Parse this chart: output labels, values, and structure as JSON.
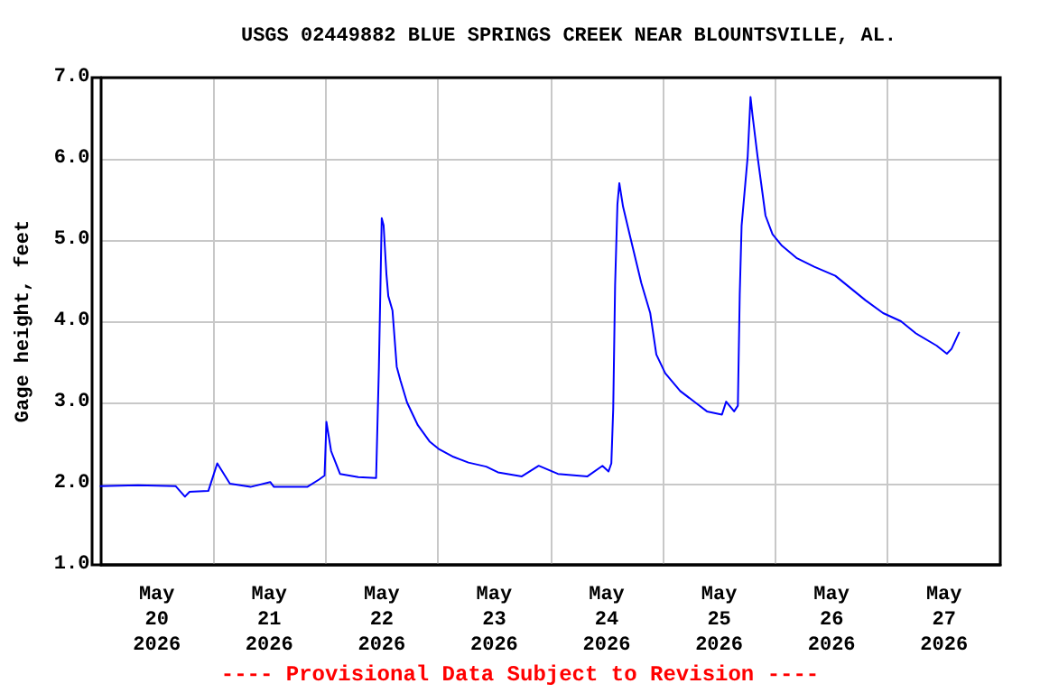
{
  "chart_data": {
    "type": "line",
    "title": "USGS 02449882 BLUE SPRINGS CREEK NEAR BLOUNTSVILLE, AL.",
    "ylabel": "Gage height, feet",
    "annotations": [
      "---- Provisional Data Subject to Revision ----"
    ],
    "x": [
      "2026-05-20T00:00",
      "2026-05-20T08:00",
      "2026-05-20T16:00",
      "2026-05-20T18:00",
      "2026-05-20T19:00",
      "2026-05-20T23:00",
      "2026-05-21T00:54",
      "2026-05-21T03:36",
      "2026-05-21T08:00",
      "2026-05-21T12:12",
      "2026-05-21T13:00",
      "2026-05-21T20:06",
      "2026-05-21T22:36",
      "2026-05-21T23:48",
      "2026-05-22T00:12",
      "2026-05-22T01:12",
      "2026-05-22T03:06",
      "2026-05-22T07:00",
      "2026-05-22T10:48",
      "2026-05-22T11:24",
      "2026-05-22T12:00",
      "2026-05-22T12:24",
      "2026-05-22T13:00",
      "2026-05-22T13:24",
      "2026-05-22T14:18",
      "2026-05-22T15:12",
      "2026-05-22T16:00",
      "2026-05-22T17:24",
      "2026-05-22T19:42",
      "2026-05-22T22:12",
      "2026-05-23T00:06",
      "2026-05-23T03:18",
      "2026-05-23T06:30",
      "2026-05-23T10:18",
      "2026-05-23T12:48",
      "2026-05-23T17:54",
      "2026-05-23T21:30",
      "2026-05-24T01:36",
      "2026-05-24T07:54",
      "2026-05-24T11:06",
      "2026-05-24T12:24",
      "2026-05-24T13:00",
      "2026-05-24T13:24",
      "2026-05-24T13:48",
      "2026-05-24T14:18",
      "2026-05-24T14:42",
      "2026-05-24T15:30",
      "2026-05-24T16:54",
      "2026-05-24T19:24",
      "2026-05-24T21:18",
      "2026-05-24T22:36",
      "2026-05-25T00:30",
      "2026-05-25T03:42",
      "2026-05-25T06:54",
      "2026-05-25T09:24",
      "2026-05-25T12:36",
      "2026-05-25T13:30",
      "2026-05-25T15:12",
      "2026-05-25T16:00",
      "2026-05-25T16:24",
      "2026-05-25T16:48",
      "2026-05-25T18:06",
      "2026-05-25T18:42",
      "2026-05-25T19:06",
      "2026-05-25T20:12",
      "2026-05-25T21:54",
      "2026-05-25T23:24",
      "2026-05-26T01:24",
      "2026-05-26T04:30",
      "2026-05-26T08:18",
      "2026-05-26T12:48",
      "2026-05-26T16:00",
      "2026-05-26T19:12",
      "2026-05-26T23:00",
      "2026-05-27T02:48",
      "2026-05-27T06:00",
      "2026-05-27T10:24",
      "2026-05-27T12:36",
      "2026-05-27T13:36",
      "2026-05-27T15:12"
    ],
    "series": [
      {
        "color": "#0000ff",
        "values": [
          1.97,
          1.98,
          1.97,
          1.84,
          1.9,
          1.91,
          2.25,
          2.0,
          1.96,
          2.02,
          1.96,
          1.96,
          2.05,
          2.1,
          2.76,
          2.4,
          2.12,
          2.08,
          2.07,
          3.44,
          5.27,
          5.18,
          4.58,
          4.31,
          4.13,
          3.44,
          3.27,
          3.0,
          2.72,
          2.52,
          2.43,
          2.33,
          2.26,
          2.21,
          2.14,
          2.09,
          2.22,
          2.12,
          2.09,
          2.22,
          2.15,
          2.25,
          2.92,
          4.44,
          5.44,
          5.7,
          5.41,
          5.07,
          4.47,
          4.1,
          3.59,
          3.36,
          3.14,
          3.0,
          2.89,
          2.85,
          3.01,
          2.89,
          2.96,
          4.33,
          5.18,
          6.03,
          6.76,
          6.55,
          6.03,
          5.3,
          5.07,
          4.93,
          4.78,
          4.67,
          4.56,
          4.41,
          4.26,
          4.1,
          4.0,
          3.85,
          3.7,
          3.6,
          3.66,
          3.86
        ]
      }
    ],
    "xlim": [
      "2026-05-20T00:00",
      "2026-05-28T00:00"
    ],
    "xticks": [
      {
        "value": "2026-05-20T12:00",
        "label": "May\n20\n2026"
      },
      {
        "value": "2026-05-21T12:00",
        "label": "May\n21\n2026"
      },
      {
        "value": "2026-05-22T12:00",
        "label": "May\n22\n2026"
      },
      {
        "value": "2026-05-23T12:00",
        "label": "May\n23\n2026"
      },
      {
        "value": "2026-05-24T12:00",
        "label": "May\n24\n2026"
      },
      {
        "value": "2026-05-25T12:00",
        "label": "May\n25\n2026"
      },
      {
        "value": "2026-05-26T12:00",
        "label": "May\n26\n2026"
      },
      {
        "value": "2026-05-27T12:00",
        "label": "May\n27\n2026"
      },
      {
        "value": "2026-05-21T00:00",
        "label": null
      },
      {
        "value": "2026-05-22T00:00",
        "label": null
      },
      {
        "value": "2026-05-23T00:00",
        "label": null
      },
      {
        "value": "2026-05-24T00:00",
        "label": null
      },
      {
        "value": "2026-05-25T00:00",
        "label": null
      },
      {
        "value": "2026-05-26T00:00",
        "label": null
      },
      {
        "value": "2026-05-27T00:00",
        "label": null
      }
    ],
    "ylim": [
      1,
      7
    ],
    "yticks": [
      {
        "value": 1,
        "label": "1.0"
      },
      {
        "value": 2,
        "label": "2.0"
      },
      {
        "value": 3,
        "label": "3.0"
      },
      {
        "value": 4,
        "label": "4.0"
      },
      {
        "value": 5,
        "label": "5.0"
      },
      {
        "value": 6,
        "label": "6.0"
      },
      {
        "value": 7,
        "label": "7.0"
      }
    ],
    "grid": true,
    "marker": "none",
    "line_style": "solid"
  }
}
